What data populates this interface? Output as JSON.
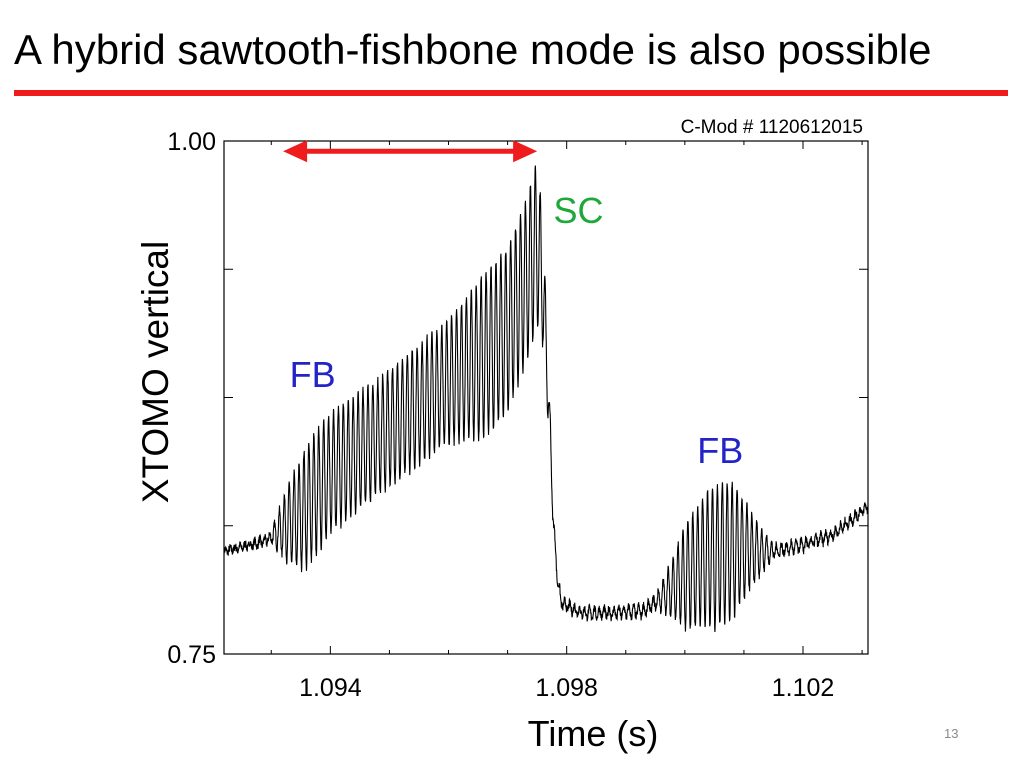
{
  "slide": {
    "title": "A hybrid sawtooth-fishbone mode is also possible",
    "number": "13",
    "accent_color": "#ee1c1c"
  },
  "chart_data": {
    "type": "line",
    "title": "C-Mod # 1120612015",
    "xlabel": "Time (s)",
    "ylabel": "XTOMO vertical",
    "xlim": [
      1.0922,
      1.1031
    ],
    "ylim": [
      0.75,
      1.0
    ],
    "x_ticks": [
      "1.094",
      "1.098",
      "1.102"
    ],
    "y_tick_labels": [
      "0.75",
      "1.00"
    ],
    "y_minor_ticks": [
      0.8125,
      0.875,
      0.9375
    ],
    "grid": false,
    "series": [
      {
        "color": "#000000",
        "baseline": {
          "x": [
            1.0922,
            1.0929,
            1.0935,
            1.094,
            1.095,
            1.096,
            1.0966,
            1.097,
            1.0973,
            1.0975,
            1.0976,
            1.0977,
            1.0978,
            1.0979,
            1.0981,
            1.0983,
            1.0988,
            1.0993,
            1.0995,
            1.0999,
            1.1003,
            1.1007,
            1.101,
            1.1015,
            1.102,
            1.1025,
            1.1031
          ],
          "y": [
            0.8,
            0.805,
            0.818,
            0.838,
            0.86,
            0.883,
            0.895,
            0.908,
            0.93,
            0.95,
            0.93,
            0.87,
            0.8,
            0.775,
            0.772,
            0.77,
            0.77,
            0.771,
            0.775,
            0.785,
            0.795,
            0.8,
            0.801,
            0.8,
            0.803,
            0.808,
            0.822
          ]
        },
        "oscillation_amplitude": {
          "x": [
            1.0922,
            1.093,
            1.0933,
            1.0936,
            1.0948,
            1.096,
            1.0966,
            1.097,
            1.0975,
            1.0976,
            1.0977,
            1.0979,
            1.0995,
            1.0997,
            1.1,
            1.1005,
            1.1008,
            1.1012,
            1.1015,
            1.1031
          ],
          "y": [
            0.001,
            0.002,
            0.02,
            0.03,
            0.028,
            0.03,
            0.04,
            0.04,
            0.04,
            0.03,
            0.012,
            0.002,
            0.003,
            0.01,
            0.025,
            0.035,
            0.033,
            0.015,
            0.003,
            0.002
          ]
        },
        "oscillation_period_s": 8.33e-05
      }
    ],
    "annotations": [
      {
        "text": "FB",
        "color": "#2323c8",
        "x": 1.0937,
        "y": 0.88
      },
      {
        "text": "SC",
        "color": "#1fa83a",
        "x": 1.0982,
        "y": 0.96
      },
      {
        "text": "FB",
        "color": "#2323c8",
        "x": 1.1006,
        "y": 0.843
      }
    ],
    "arrow": {
      "color": "#ee1c1c",
      "x_start": 1.0932,
      "x_end": 1.0975,
      "y": 0.995
    }
  }
}
